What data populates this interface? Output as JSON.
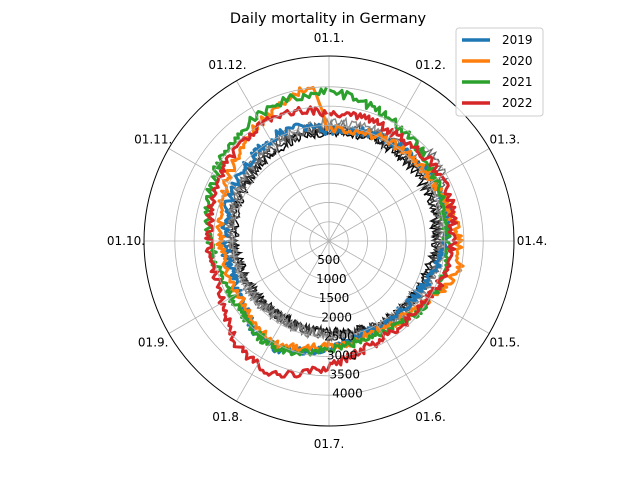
{
  "chart_data": {
    "type": "line",
    "projection": "polar",
    "title": "Daily mortality in Germany",
    "angular_ticks": [
      "01.1.",
      "01.2.",
      "01.3.",
      "01.4.",
      "01.5.",
      "01.6.",
      "01.7.",
      "01.8.",
      "01.9.",
      "01.10.",
      "01.11.",
      "01.12."
    ],
    "radial_ticks": [
      500,
      1000,
      1500,
      2000,
      2500,
      3000,
      3500,
      4000
    ],
    "radial_tick_labels": [
      "500",
      "1000",
      "1500",
      "2000",
      "2500",
      "3000",
      "3500",
      "4000"
    ],
    "rlim": [
      0,
      4800
    ],
    "grid": true,
    "legend_position": "top-right",
    "x_units": "day of year",
    "background_series": {
      "colors": [
        "#000000",
        "#222222",
        "#444444",
        "#666666",
        "#888888"
      ],
      "base_deaths": [
        2600,
        2620,
        2680,
        2720,
        2760
      ],
      "seasonal_amplitude": [
        280,
        300,
        330,
        320,
        360
      ]
    },
    "series": [
      {
        "name": "2019",
        "color": "#1f77b4",
        "x": [
          1,
          15,
          30,
          45,
          60,
          75,
          90,
          105,
          120,
          135,
          150,
          165,
          180,
          195,
          210,
          225,
          240,
          255,
          270,
          285,
          300,
          315,
          330,
          345,
          360
        ],
        "values": [
          2850,
          2950,
          3000,
          3100,
          3150,
          3200,
          3050,
          2900,
          2700,
          2600,
          2550,
          2600,
          2700,
          2900,
          3100,
          3000,
          2700,
          2650,
          2700,
          2750,
          2800,
          2900,
          3000,
          3100,
          2950
        ]
      },
      {
        "name": "2020",
        "color": "#ff7f0e",
        "x": [
          1,
          15,
          30,
          45,
          60,
          75,
          90,
          105,
          120,
          135,
          150,
          165,
          180,
          195,
          210,
          225,
          240,
          255,
          270,
          285,
          300,
          315,
          330,
          345,
          360
        ],
        "values": [
          2900,
          2950,
          3000,
          3050,
          3100,
          3200,
          3350,
          3450,
          3100,
          2800,
          2650,
          2650,
          2700,
          2800,
          3000,
          2900,
          2750,
          2750,
          2800,
          2850,
          3000,
          3200,
          3450,
          3700,
          4100
        ]
      },
      {
        "name": "2021",
        "color": "#2ca02c",
        "x": [
          1,
          15,
          30,
          45,
          60,
          75,
          90,
          105,
          120,
          135,
          150,
          165,
          180,
          195,
          210,
          225,
          240,
          255,
          270,
          285,
          300,
          315,
          330,
          345,
          360
        ],
        "values": [
          3900,
          3700,
          3500,
          3350,
          3200,
          3100,
          3050,
          3100,
          3050,
          2900,
          2750,
          2700,
          2750,
          2950,
          3100,
          3050,
          2900,
          2950,
          3050,
          3200,
          3350,
          3550,
          3700,
          3800,
          3850
        ]
      },
      {
        "name": "2022",
        "color": "#d62728",
        "x": [
          1,
          15,
          30,
          45,
          60,
          75,
          90,
          105,
          120,
          135,
          150,
          165,
          180,
          195,
          210,
          225,
          240,
          255,
          270,
          285,
          300,
          315,
          330,
          345,
          360
        ],
        "values": [
          3300,
          3350,
          3250,
          3300,
          3350,
          3300,
          3200,
          3150,
          3000,
          2900,
          2850,
          2950,
          3150,
          3500,
          3750,
          3600,
          3250,
          3050,
          3100,
          3150,
          3200,
          3350,
          3450,
          3550,
          3400
        ]
      }
    ]
  }
}
